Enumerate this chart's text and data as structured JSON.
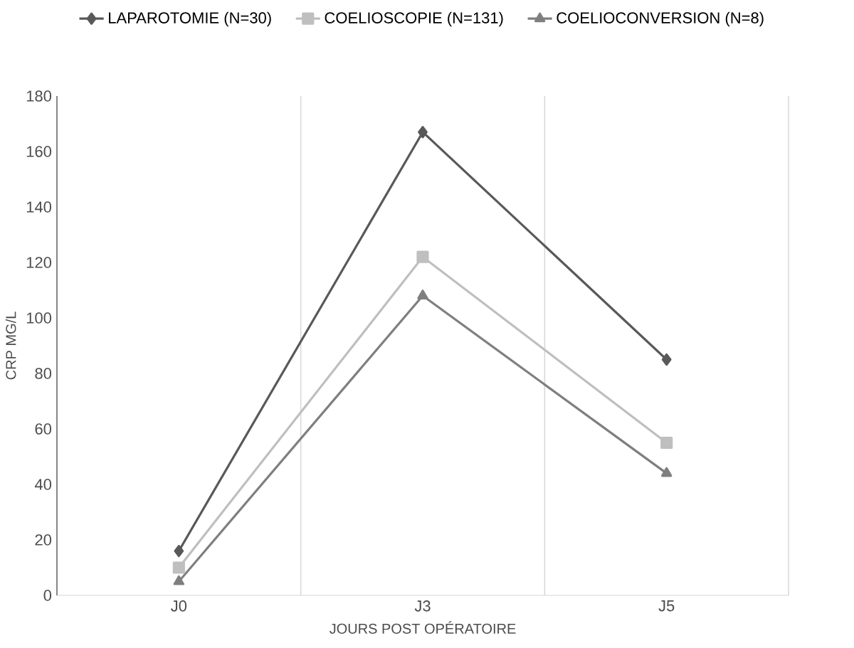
{
  "chart_data": {
    "type": "line",
    "xlabel": "JOURS POST OPÉRATOIRE",
    "ylabel": "CRP MG/L",
    "categories": [
      "J0",
      "J3",
      "J5"
    ],
    "series": [
      {
        "name": "LAPAROTOMIE (N=30)",
        "color": "#595959",
        "values": [
          16,
          167,
          85
        ],
        "marker": "diamond"
      },
      {
        "name": "COELIOSCOPIE (N=131)",
        "color": "#bfbfbf",
        "values": [
          10,
          122,
          55
        ],
        "marker": "square"
      },
      {
        "name": "COELIOCONVERSION (N=8)",
        "color": "#7f7f7f",
        "values": [
          5,
          108,
          44
        ],
        "marker": "triangle"
      }
    ],
    "ylim": [
      0,
      180
    ],
    "yticks": [
      0,
      20,
      40,
      60,
      80,
      100,
      120,
      140,
      160,
      180
    ],
    "grid": "x",
    "legend": "top",
    "line_style": "solid"
  }
}
